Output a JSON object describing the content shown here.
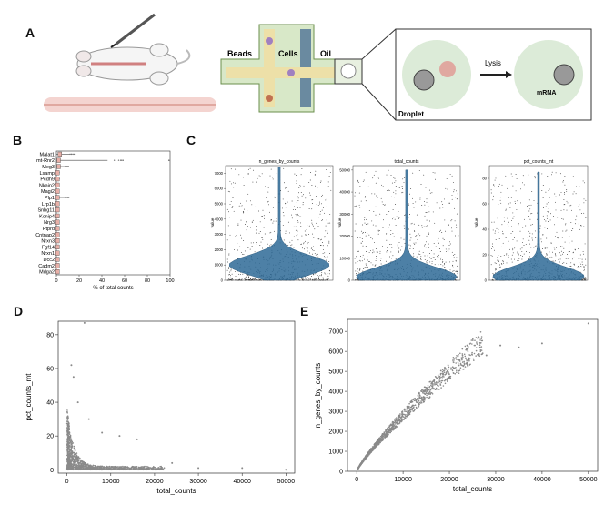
{
  "panels": {
    "a": {
      "letter": "A",
      "labels": {
        "beads": "Beads",
        "cells": "Cells",
        "oil": "Oil",
        "lysis": "Lysis",
        "droplet": "Droplet",
        "mrna": "mRNA"
      }
    },
    "b": {
      "letter": "B"
    },
    "c": {
      "letter": "C"
    },
    "d": {
      "letter": "D"
    },
    "e": {
      "letter": "E"
    }
  },
  "chart_data": [
    {
      "id": "B",
      "type": "box",
      "xlabel": "% of total counts",
      "xlim": [
        0,
        100
      ],
      "xticks": [
        0,
        20,
        40,
        60,
        80,
        100
      ],
      "categories": [
        "Malat1",
        "mt-Rnr2",
        "Meg3",
        "Lsamp",
        "Pcdh9",
        "Nkain2",
        "Magi2",
        "Plp1",
        "Lrp1b",
        "Snhg11",
        "Kcnip4",
        "Nrg3",
        "Ptprd",
        "Cntnap2",
        "Nrxn3",
        "Fgf14",
        "Nrxn1",
        "Dcc2",
        "Cadm2",
        "Mdga2"
      ],
      "medians": [
        3,
        2,
        2,
        1,
        1,
        1,
        1,
        1,
        1,
        1,
        1,
        1,
        1,
        1,
        1,
        1,
        1,
        1,
        1,
        1
      ],
      "whisker_max": [
        12,
        45,
        8,
        3,
        3,
        2,
        2,
        8,
        2,
        2,
        2,
        2,
        2,
        2,
        2,
        2,
        2,
        2,
        2,
        2
      ]
    },
    {
      "id": "C1",
      "type": "violin",
      "title": "n_genes_by_counts",
      "ylabel": "value",
      "ylim": [
        0,
        7500
      ],
      "yticks": [
        0,
        1000,
        2000,
        3000,
        4000,
        5000,
        6000,
        7000
      ],
      "max": 7400,
      "median": 1000
    },
    {
      "id": "C2",
      "type": "violin",
      "title": "total_counts",
      "ylabel": "value",
      "ylim": [
        0,
        52000
      ],
      "yticks": [
        0,
        10000,
        20000,
        30000,
        40000,
        50000
      ],
      "max": 50000,
      "median": 1500
    },
    {
      "id": "C3",
      "type": "violin",
      "title": "pct_counts_mt",
      "ylabel": "value",
      "ylim": [
        0,
        90
      ],
      "yticks": [
        0,
        20,
        40,
        60,
        80
      ],
      "max": 85,
      "median": 3
    },
    {
      "id": "D",
      "type": "scatter",
      "xlabel": "total_counts",
      "ylabel": "pct_counts_mt",
      "xlim": [
        -2000,
        52000
      ],
      "ylim": [
        -2,
        88
      ],
      "xticks": [
        0,
        10000,
        20000,
        30000,
        40000,
        50000
      ],
      "yticks": [
        0,
        20,
        40,
        60,
        80
      ],
      "outliers": [
        [
          1000,
          62
        ],
        [
          1500,
          55
        ],
        [
          2500,
          40
        ],
        [
          4000,
          87
        ],
        [
          5000,
          30
        ],
        [
          8000,
          22
        ],
        [
          12000,
          20
        ],
        [
          16000,
          18
        ],
        [
          24000,
          4
        ],
        [
          30000,
          1
        ],
        [
          40000,
          1
        ],
        [
          50000,
          0
        ]
      ]
    },
    {
      "id": "E",
      "type": "scatter",
      "xlabel": "total_counts",
      "ylabel": "n_genes_by_counts",
      "xlim": [
        -2000,
        52000
      ],
      "ylim": [
        0,
        7600
      ],
      "xticks": [
        0,
        10000,
        20000,
        30000,
        40000,
        50000
      ],
      "yticks": [
        0,
        1000,
        2000,
        3000,
        4000,
        5000,
        6000,
        7000
      ],
      "outliers": [
        [
          50000,
          7400
        ],
        [
          40000,
          6400
        ],
        [
          35000,
          6200
        ],
        [
          31000,
          6300
        ],
        [
          28000,
          5800
        ],
        [
          20000,
          4700
        ]
      ]
    }
  ]
}
